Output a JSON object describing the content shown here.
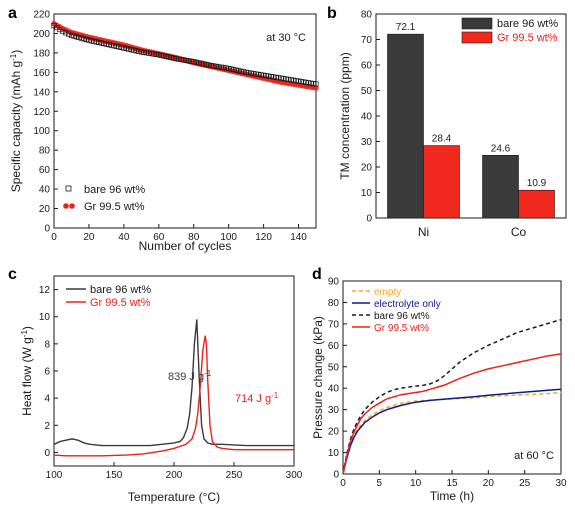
{
  "colors": {
    "black": "#1a1a1a",
    "red": "#e8231a",
    "bar_dark": "#3a3a3a",
    "bar_red": "#f0281e",
    "blue": "#0d1a8c",
    "orange": "#f5a623"
  },
  "chart_data": [
    {
      "panel": "a",
      "type": "scatter",
      "xlabel": "Number of cycles",
      "ylabel": "Specific capacity (mAh g",
      "ylabel_sup": "-1",
      "ylabel_close": ")",
      "annotation": "at 30 °C",
      "xlim": [
        0,
        150
      ],
      "ylim": [
        0,
        220
      ],
      "xticks": [
        0,
        20,
        40,
        60,
        80,
        100,
        120,
        140
      ],
      "yticks": [
        0,
        20,
        40,
        60,
        80,
        100,
        120,
        140,
        160,
        180,
        200,
        220
      ],
      "legend_position": "bottom-left",
      "series": [
        {
          "name": "bare 96 wt%",
          "marker": "open-square",
          "color": "#1a1a1a",
          "x": [
            0,
            5,
            10,
            20,
            30,
            40,
            50,
            60,
            70,
            80,
            90,
            100,
            110,
            120,
            130,
            140,
            150
          ],
          "y": [
            208,
            202,
            198,
            193,
            189,
            185,
            181,
            178,
            174,
            171,
            167,
            164,
            160,
            157,
            154,
            151,
            148
          ]
        },
        {
          "name": "Gr 99.5 wt%",
          "marker": "filled-circle",
          "color": "#e8231a",
          "x": [
            0,
            5,
            10,
            20,
            30,
            40,
            50,
            60,
            70,
            80,
            90,
            100,
            110,
            120,
            130,
            140,
            150
          ],
          "y": [
            210,
            205,
            201,
            196,
            192,
            188,
            183,
            179,
            175,
            170,
            166,
            162,
            158,
            154,
            150,
            147,
            144
          ]
        }
      ]
    },
    {
      "panel": "b",
      "type": "bar",
      "ylabel": "TM concentration (ppm)",
      "categories": [
        "Ni",
        "Co"
      ],
      "ylim": [
        0,
        80
      ],
      "yticks": [
        0,
        10,
        20,
        30,
        40,
        50,
        60,
        70,
        80
      ],
      "legend_position": "top-right",
      "series": [
        {
          "name": "bare 96 wt%",
          "values": [
            72.1,
            24.6
          ],
          "labels": [
            "72.1",
            "24.6"
          ],
          "color": "#3a3a3a"
        },
        {
          "name": "Gr 99.5 wt%",
          "values": [
            28.4,
            10.9
          ],
          "labels": [
            "28.4",
            "10.9"
          ],
          "color": "#f0281e"
        }
      ]
    },
    {
      "panel": "c",
      "type": "line",
      "xlabel": "Temperature (",
      "xlabel_unit": "°C)",
      "ylabel": "Heat flow (W g",
      "ylabel_sup": "-1",
      "ylabel_close": ")",
      "xlim": [
        100,
        300
      ],
      "ylim": [
        -1,
        13
      ],
      "xticks": [
        100,
        150,
        200,
        250,
        300
      ],
      "yticks": [
        0,
        2,
        4,
        6,
        8,
        10,
        12
      ],
      "legend_position": "top-left",
      "annotations": [
        {
          "text": "839 J g",
          "sup": "-1",
          "series": 0
        },
        {
          "text": "714 J g",
          "sup": "-1",
          "series": 1
        }
      ],
      "series": [
        {
          "name": "bare 96 wt%",
          "color": "#3a3a3a",
          "x": [
            100,
            105,
            110,
            115,
            120,
            125,
            130,
            140,
            150,
            160,
            170,
            180,
            190,
            200,
            205,
            208,
            211,
            213,
            215,
            217,
            219,
            221,
            223,
            225,
            228,
            232,
            240,
            260,
            280,
            300
          ],
          "y": [
            0.6,
            0.8,
            0.9,
            1.0,
            0.9,
            0.7,
            0.6,
            0.5,
            0.5,
            0.5,
            0.5,
            0.5,
            0.6,
            0.7,
            0.8,
            1.1,
            1.8,
            2.8,
            4.8,
            8.0,
            9.8,
            5.5,
            2.0,
            1.0,
            0.7,
            0.6,
            0.6,
            0.5,
            0.5,
            0.5
          ]
        },
        {
          "name": "Gr 99.5 wt%",
          "color": "#e8231a",
          "x": [
            100,
            110,
            120,
            140,
            160,
            175,
            190,
            200,
            210,
            215,
            218,
            220,
            222,
            224,
            226,
            227,
            228,
            230,
            232,
            236,
            240,
            250,
            270,
            300
          ],
          "y": [
            -0.2,
            -0.25,
            -0.25,
            -0.25,
            -0.2,
            -0.1,
            0.1,
            0.3,
            0.6,
            1.0,
            1.8,
            3.0,
            5.0,
            7.5,
            8.6,
            8.0,
            5.5,
            2.0,
            0.8,
            0.4,
            0.3,
            0.2,
            0.2,
            0.2
          ]
        }
      ]
    },
    {
      "panel": "d",
      "type": "line",
      "xlabel": "Time (h)",
      "ylabel": "Pressure change (kPa)",
      "annotation": "at 60 °C",
      "xlim": [
        0,
        30
      ],
      "ylim": [
        0,
        90
      ],
      "xticks": [
        0,
        5,
        10,
        15,
        20,
        25,
        30
      ],
      "yticks": [
        0,
        10,
        20,
        30,
        40,
        50,
        60,
        70,
        80,
        90
      ],
      "legend_position": "top-left",
      "series": [
        {
          "name": "empty",
          "color": "#f5a623",
          "dash": "4,3",
          "x": [
            0,
            0.5,
            1,
            1.5,
            2,
            2.5,
            3,
            4,
            5,
            6,
            7,
            8,
            10,
            12,
            15,
            18,
            20,
            22,
            25,
            28,
            30
          ],
          "y": [
            0,
            8,
            14,
            18,
            21,
            23,
            25,
            27.5,
            29.5,
            31,
            32,
            33,
            34,
            34.5,
            35,
            35.5,
            36,
            36.5,
            37,
            37.5,
            38
          ]
        },
        {
          "name": "electrolyte only",
          "color": "#0d1a8c",
          "dash": "",
          "x": [
            0,
            0.5,
            1,
            1.5,
            2,
            2.5,
            3,
            4,
            5,
            6,
            7,
            8,
            10,
            12,
            15,
            18,
            20,
            22,
            25,
            28,
            30
          ],
          "y": [
            0,
            7,
            13,
            17,
            20,
            22,
            24,
            26.5,
            28.5,
            30,
            31,
            32,
            33.5,
            34.3,
            35.2,
            36,
            36.7,
            37.3,
            38.2,
            39,
            39.5
          ]
        },
        {
          "name": "bare 96 wt%",
          "color": "#1a1a1a",
          "dash": "4,3",
          "x": [
            0,
            0.5,
            1,
            1.5,
            2,
            2.5,
            3,
            4,
            5,
            6,
            7,
            8,
            9,
            10,
            11,
            12,
            13,
            14,
            15,
            16,
            18,
            20,
            22,
            24,
            26,
            28,
            30
          ],
          "y": [
            0,
            9,
            16,
            21,
            24.5,
            27.5,
            30,
            33.5,
            36,
            38,
            39.3,
            40,
            40.5,
            41,
            41.3,
            42,
            43.5,
            46,
            49,
            52,
            56.5,
            60,
            63,
            66,
            68,
            70,
            72
          ]
        },
        {
          "name": "Gr 99.5 wt%",
          "color": "#e8231a",
          "dash": "",
          "x": [
            0,
            0.5,
            1,
            1.5,
            2,
            2.5,
            3,
            4,
            5,
            6,
            7,
            8,
            9,
            10,
            11,
            12,
            13,
            14,
            15,
            16,
            18,
            20,
            22,
            24,
            26,
            28,
            30
          ],
          "y": [
            0,
            8,
            15,
            19.5,
            23,
            26,
            28,
            31,
            33,
            35,
            36,
            37,
            37.5,
            38,
            38.5,
            39.5,
            40.5,
            41.5,
            43,
            44.5,
            47,
            49,
            50.5,
            52,
            53.5,
            55,
            56
          ]
        }
      ]
    }
  ]
}
